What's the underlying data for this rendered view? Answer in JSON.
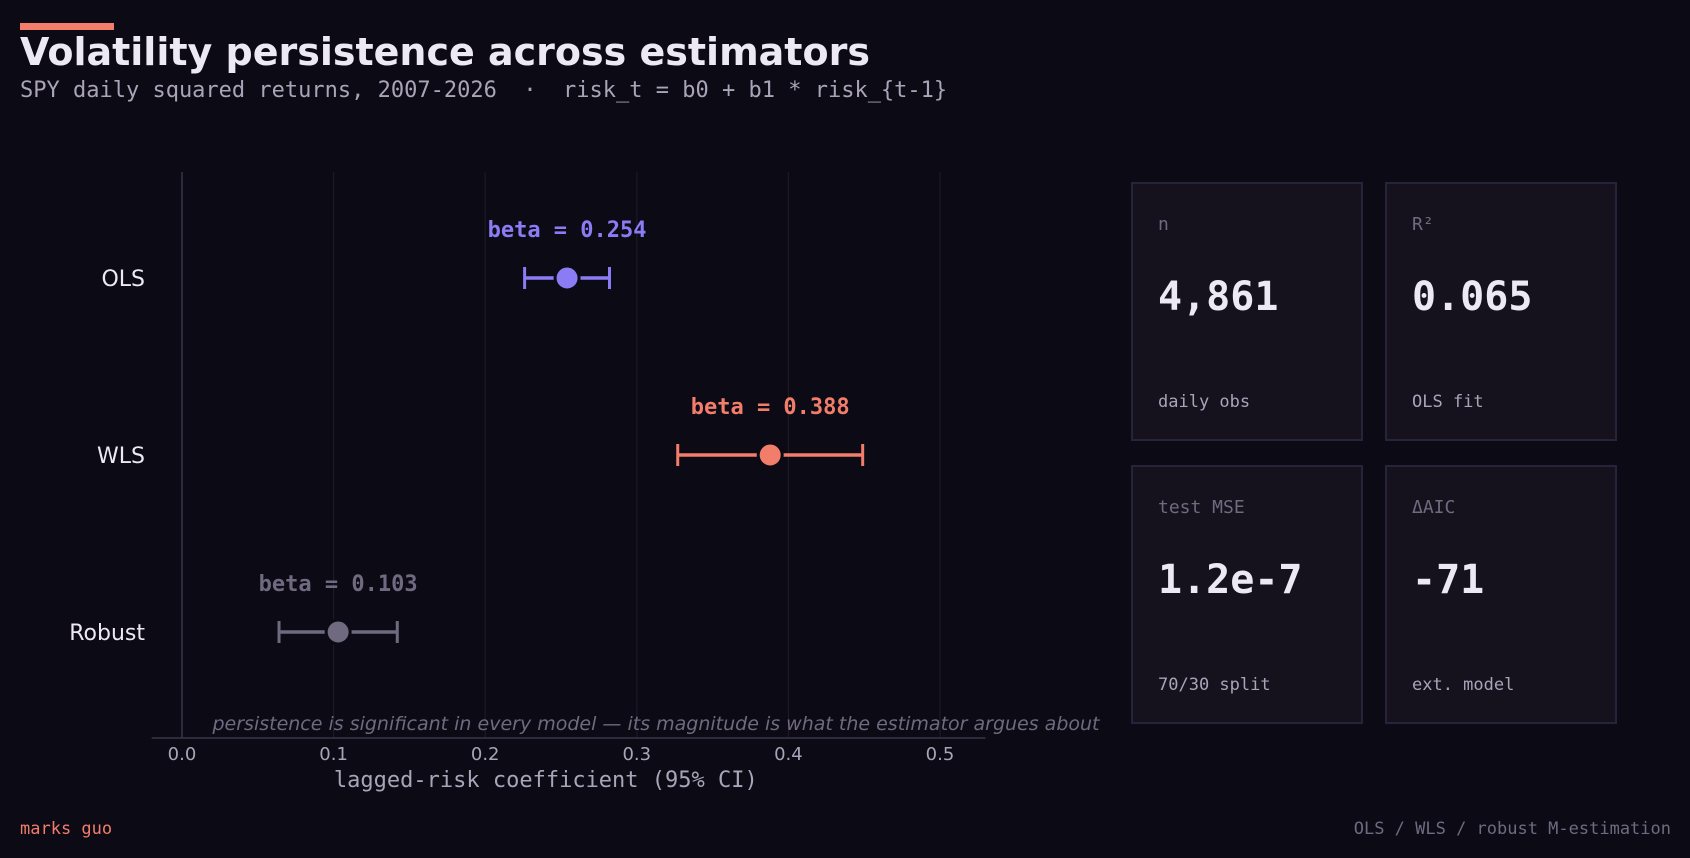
{
  "header": {
    "title": "Volatility persistence across estimators",
    "subtitle": "SPY daily squared returns, 2007-2026  ·  risk_t = b0 + b1 * risk_{t-1}"
  },
  "chart_data": {
    "type": "forest",
    "xlabel": "lagged-risk coefficient  (95% CI)",
    "xlim": [
      -0.02,
      0.53
    ],
    "x_ticks": [
      0.0,
      0.1,
      0.2,
      0.3,
      0.4,
      0.5
    ],
    "x_tick_labels": [
      "0.0",
      "0.1",
      "0.2",
      "0.3",
      "0.4",
      "0.5"
    ],
    "grid": true,
    "annotation": "persistence is significant in every model — its magnitude is what the estimator argues about",
    "series": [
      {
        "name": "OLS",
        "estimate": 0.254,
        "ci_low": 0.226,
        "ci_high": 0.282,
        "label": "beta = 0.254",
        "color": "#8b7cf6"
      },
      {
        "name": "WLS",
        "estimate": 0.388,
        "ci_low": 0.327,
        "ci_high": 0.449,
        "label": "beta = 0.388",
        "color": "#f27d6b"
      },
      {
        "name": "Robust",
        "estimate": 0.103,
        "ci_low": 0.064,
        "ci_high": 0.142,
        "label": "beta = 0.103",
        "color": "#6f6a80"
      }
    ]
  },
  "stats": [
    {
      "label": "n",
      "value": "4,861",
      "sub": "daily obs"
    },
    {
      "label": "R²",
      "value": "0.065",
      "sub": "OLS fit"
    },
    {
      "label": "test MSE",
      "value": "1.2e-7",
      "sub": "70/30 split"
    },
    {
      "label": "ΔAIC",
      "value": "-71",
      "sub": "ext. model"
    }
  ],
  "footer": {
    "author": "marks guo",
    "methods": "OLS / WLS / robust M-estimation"
  }
}
